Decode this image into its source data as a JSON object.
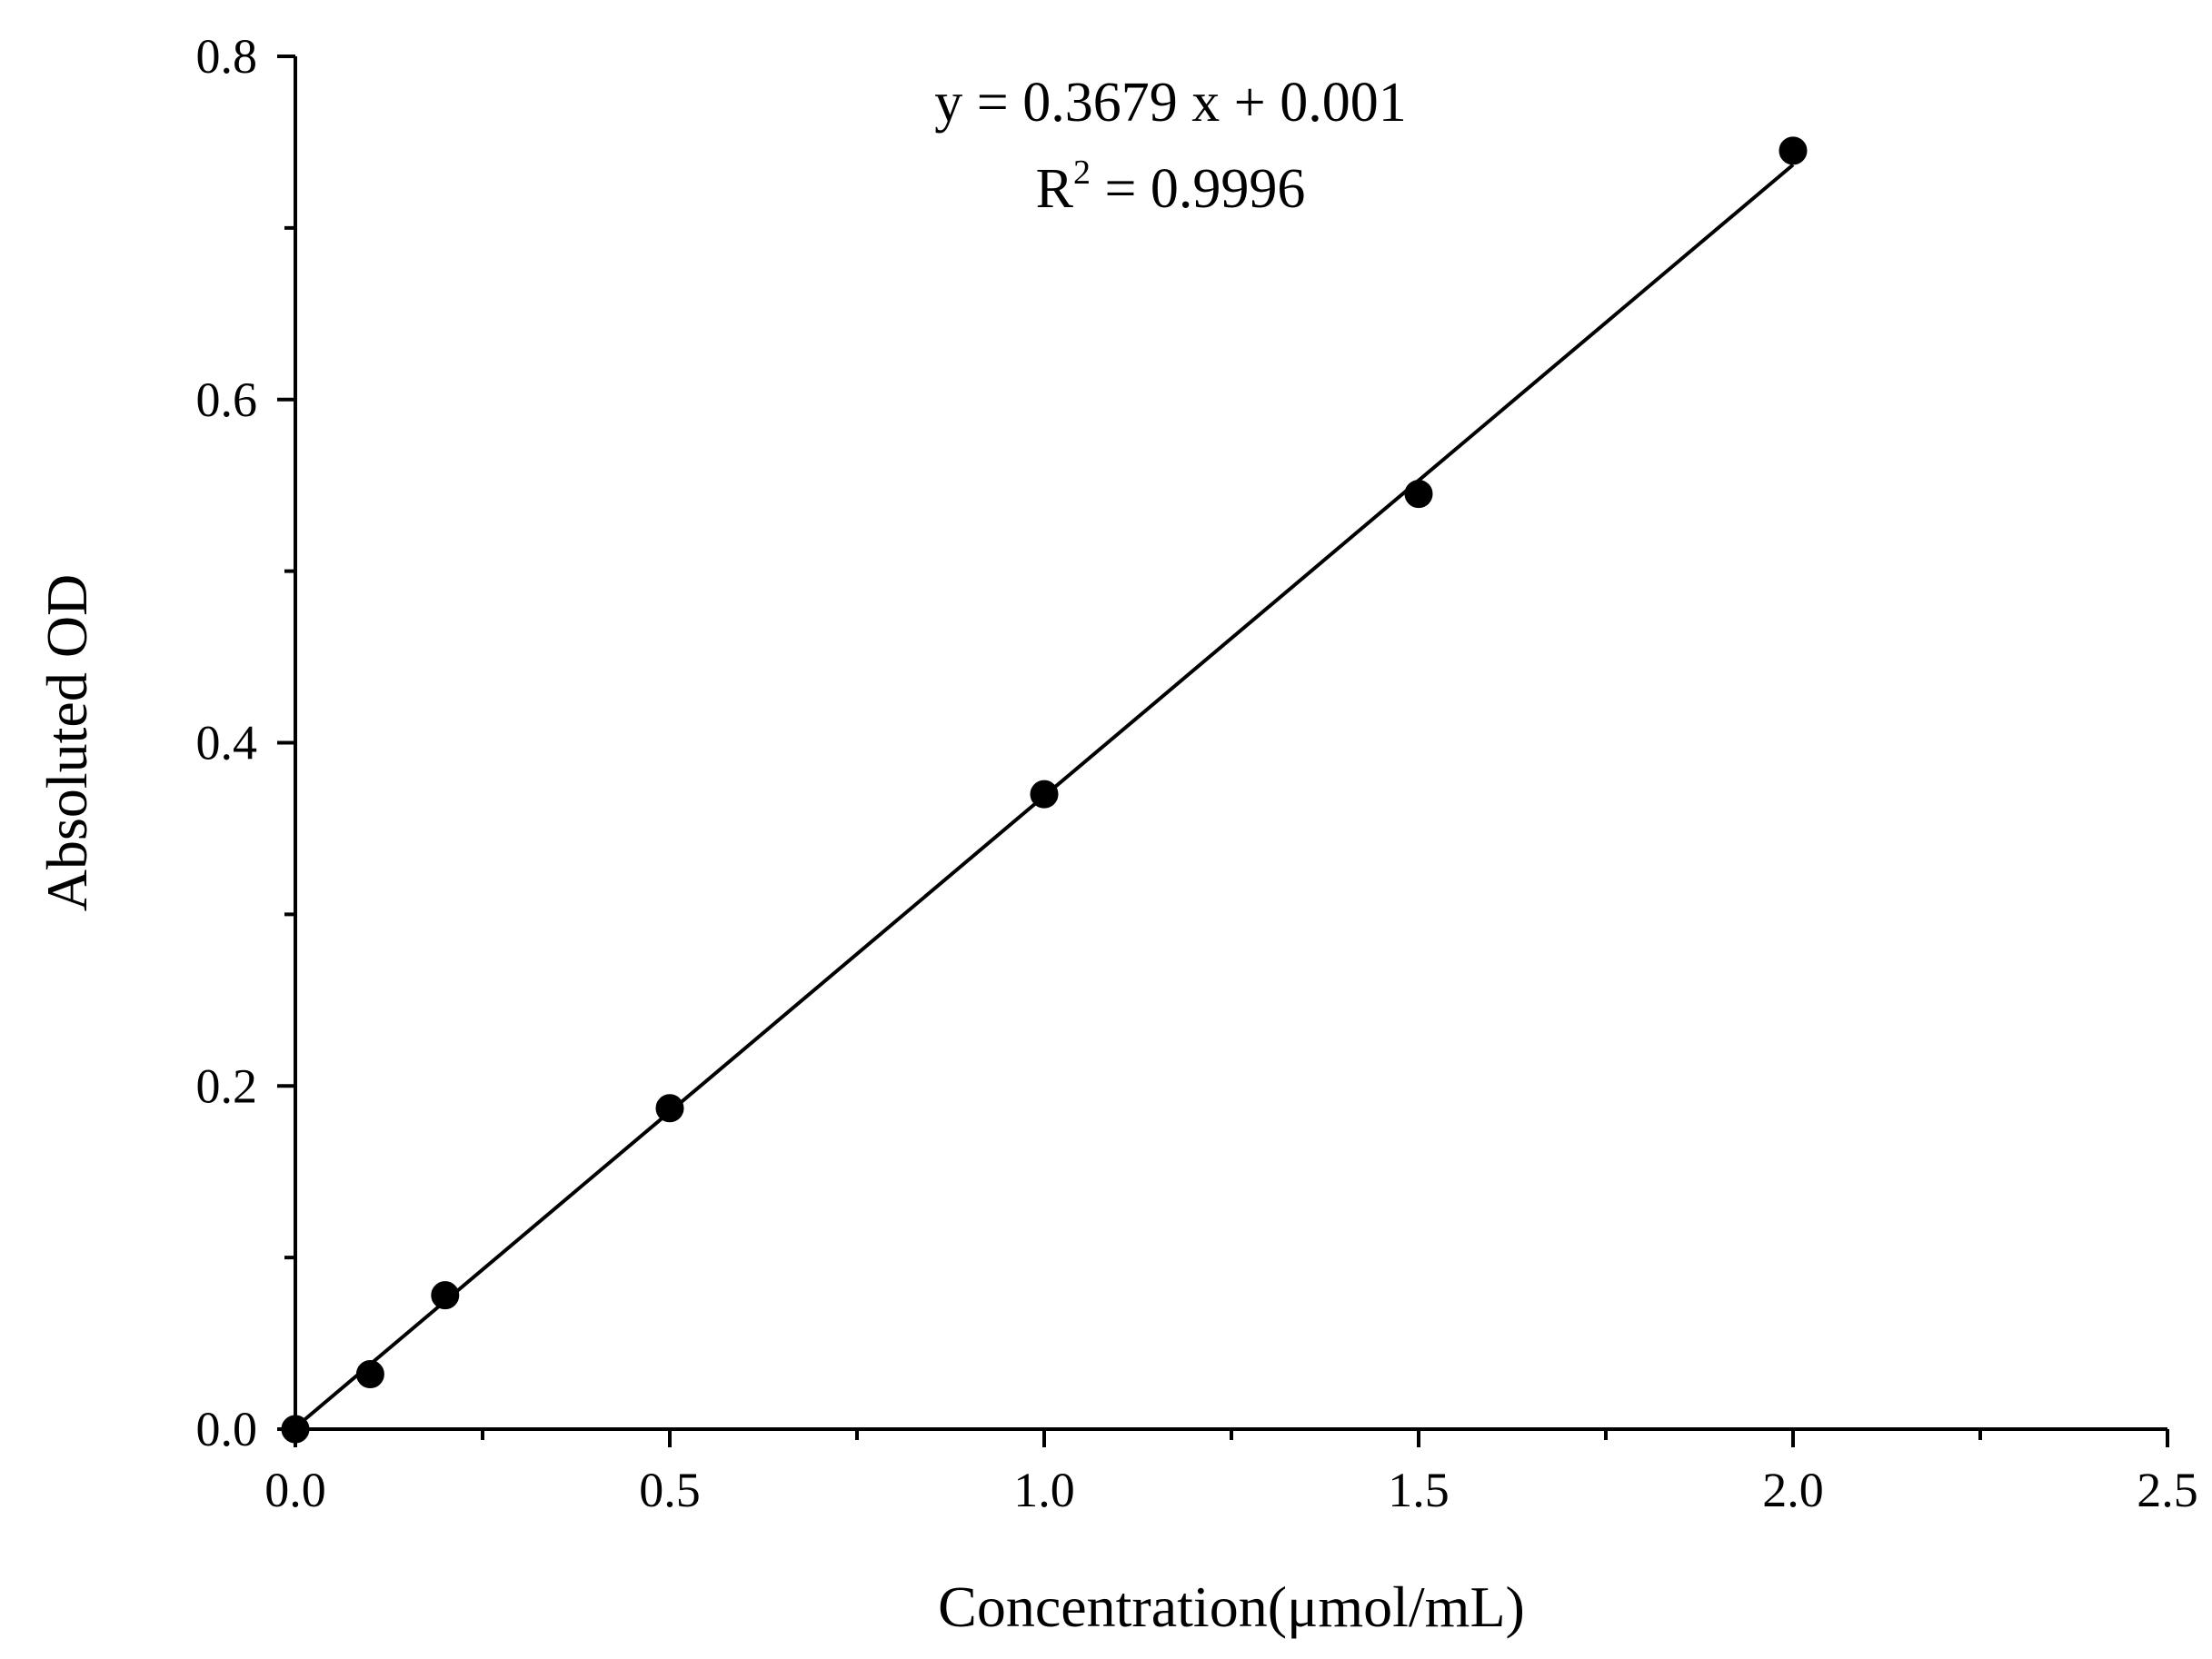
{
  "chart_data": {
    "type": "scatter",
    "title": "",
    "xlabel": "Concentration(μmol/mL)",
    "ylabel": "Absoluted OD",
    "xlim": [
      0,
      2.5
    ],
    "ylim": [
      0,
      0.8
    ],
    "x_ticks": [
      "0.0",
      "0.5",
      "1.0",
      "1.5",
      "2.0",
      "2.5"
    ],
    "y_ticks": [
      "0.0",
      "0.2",
      "0.4",
      "0.6",
      "0.8"
    ],
    "x_minor_step": 0.25,
    "y_minor_step": 0.1,
    "grid": false,
    "series": [
      {
        "x": [
          0,
          0.1,
          0.2,
          0.5,
          1.0,
          1.5,
          2.0
        ],
        "y": [
          0.0,
          0.032,
          0.078,
          0.187,
          0.37,
          0.545,
          0.745
        ]
      }
    ],
    "fit": {
      "slope": 0.3679,
      "intercept": 0.001,
      "x_range": [
        0,
        2.0
      ]
    },
    "annotations": {
      "equation": "y = 0.3679 x + 0.001",
      "r2_label": "R",
      "r2_superscript": "2",
      "r2_value": " = 0.9996"
    },
    "colors": {
      "marker": "#000000",
      "line": "#000000",
      "axis": "#000000"
    }
  }
}
